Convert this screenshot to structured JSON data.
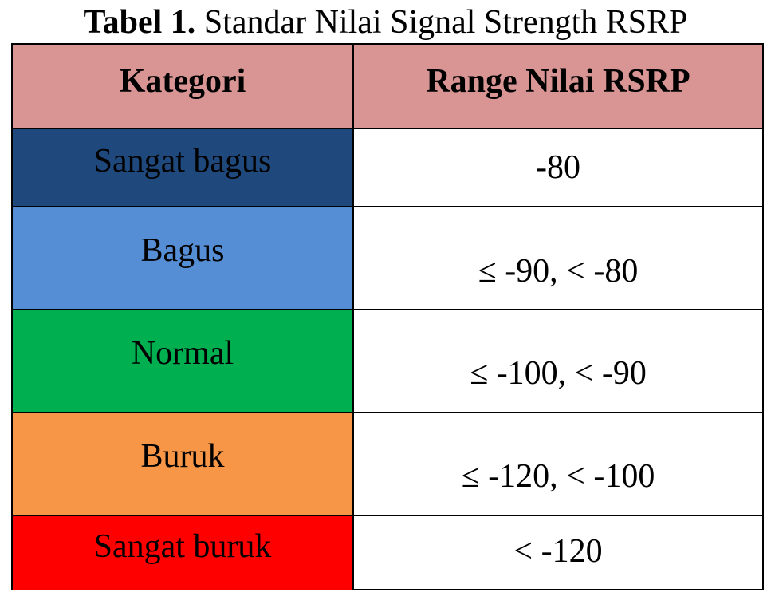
{
  "caption": {
    "number": "Tabel 1.",
    "title": "Standar Nilai Signal Strength RSRP"
  },
  "table": {
    "headers": {
      "category": "Kategori",
      "range": "Range Nilai RSRP"
    },
    "header_color": "#d99594",
    "rows": [
      {
        "category": "Sangat bagus",
        "range": "-80",
        "color": "#1f497d"
      },
      {
        "category": "Bagus",
        "range": "≤ -90, < -80",
        "color": "#558ed5"
      },
      {
        "category": "Normal",
        "range": "≤ -100, < -90",
        "color": "#00b050"
      },
      {
        "category": "Buruk",
        "range": "≤ -120, < -100",
        "color": "#f79646"
      },
      {
        "category": "Sangat buruk",
        "range": "< -120",
        "color": "#ff0000"
      }
    ]
  }
}
